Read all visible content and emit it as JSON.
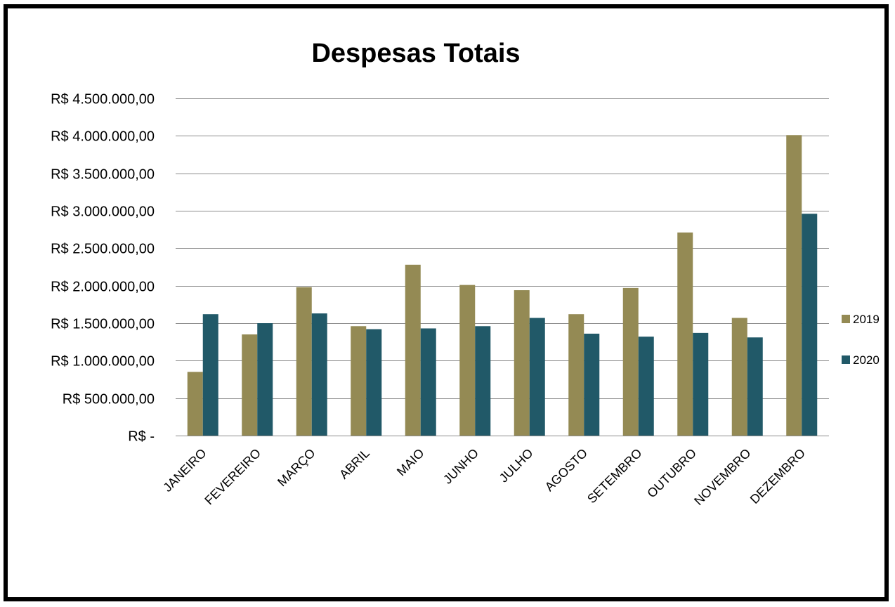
{
  "chart_data": {
    "type": "bar",
    "title": "Despesas Totais",
    "categories": [
      "JANEIRO",
      "FEVEREIRO",
      "MARÇO",
      "ABRIL",
      "MAIO",
      "JUNHO",
      "JULHO",
      "AGOSTO",
      "SETEMBRO",
      "OUTUBRO",
      "NOVEMBRO",
      "DEZEMBRO"
    ],
    "series": [
      {
        "name": "2019",
        "color": "#948a54",
        "values": [
          850000,
          1350000,
          1980000,
          1460000,
          2280000,
          2010000,
          1940000,
          1620000,
          1970000,
          2710000,
          1570000,
          4010000
        ]
      },
      {
        "name": "2020",
        "color": "#215968",
        "values": [
          1620000,
          1500000,
          1630000,
          1420000,
          1430000,
          1460000,
          1570000,
          1360000,
          1320000,
          1370000,
          1310000,
          2960000
        ]
      }
    ],
    "ylim": [
      0,
      4500000
    ],
    "yticks": [
      {
        "value": 0,
        "label": "R$ -"
      },
      {
        "value": 500000,
        "label": "R$ 500.000,00"
      },
      {
        "value": 1000000,
        "label": "R$ 1.000.000,00"
      },
      {
        "value": 1500000,
        "label": "R$ 1.500.000,00"
      },
      {
        "value": 2000000,
        "label": "R$ 2.000.000,00"
      },
      {
        "value": 2500000,
        "label": "R$ 2.500.000,00"
      },
      {
        "value": 3000000,
        "label": "R$ 3.000.000,00"
      },
      {
        "value": 3500000,
        "label": "R$ 3.500.000,00"
      },
      {
        "value": 4000000,
        "label": "R$ 4.000.000,00"
      },
      {
        "value": 4500000,
        "label": "R$ 4.500.000,00"
      }
    ],
    "grid": true,
    "legend": "right"
  }
}
